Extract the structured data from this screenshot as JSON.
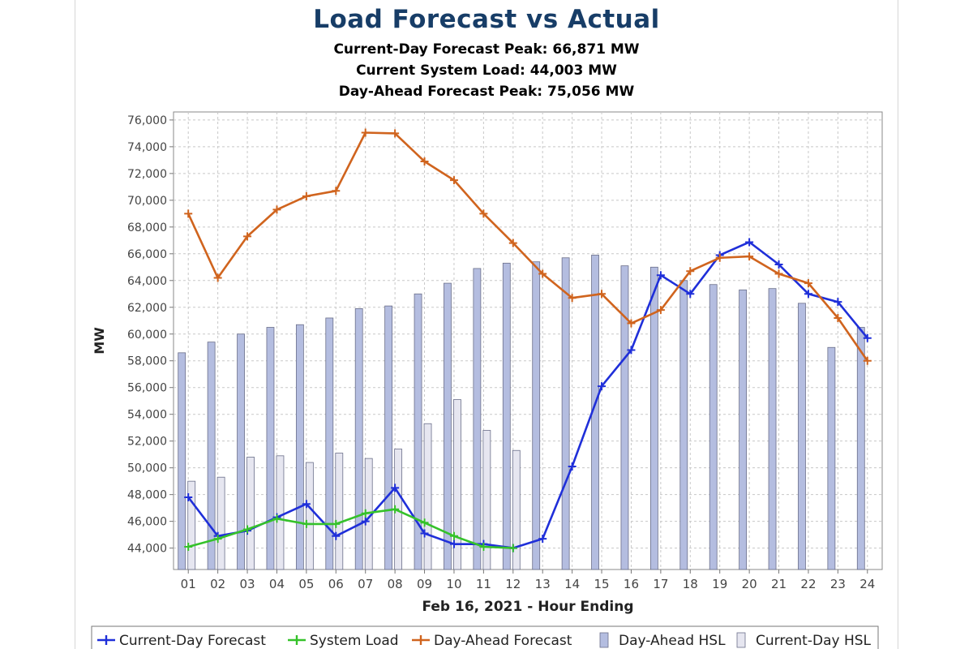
{
  "chart_data": {
    "type": "bar+line",
    "title": "Load Forecast vs Actual",
    "subtitles": [
      {
        "text": "Current-Day Forecast Peak:  66,871 MW",
        "color": "#2230d6"
      },
      {
        "text": "Current System Load:  44,003 MW",
        "color": "#35b52a"
      },
      {
        "text": "Day-Ahead Forecast Peak:  75,056 MW",
        "color": "#d0641e"
      }
    ],
    "xlabel": "Feb 16, 2021 - Hour Ending",
    "ylabel": "MW",
    "ylim": [
      42400,
      76600
    ],
    "yticks": [
      44000,
      46000,
      48000,
      50000,
      52000,
      54000,
      56000,
      58000,
      60000,
      62000,
      64000,
      66000,
      68000,
      70000,
      72000,
      74000,
      76000
    ],
    "ytick_labels": [
      "44,000",
      "46,000",
      "48,000",
      "50,000",
      "52,000",
      "54,000",
      "56,000",
      "58,000",
      "60,000",
      "62,000",
      "64,000",
      "66,000",
      "68,000",
      "70,000",
      "72,000",
      "74,000",
      "76,000"
    ],
    "categories": [
      "01",
      "02",
      "03",
      "04",
      "05",
      "06",
      "07",
      "08",
      "09",
      "10",
      "11",
      "12",
      "13",
      "14",
      "15",
      "16",
      "17",
      "18",
      "19",
      "20",
      "21",
      "22",
      "23",
      "24"
    ],
    "grid": true,
    "legend_placement": "bottom",
    "bars": [
      {
        "name": "Day-Ahead HSL",
        "color": "#b4bde0",
        "values": [
          58600,
          59400,
          60000,
          60500,
          60700,
          61200,
          61900,
          62100,
          63000,
          63800,
          64900,
          65300,
          65400,
          65700,
          65900,
          65100,
          65000,
          64000,
          63700,
          63300,
          63400,
          62300,
          59000,
          60500
        ]
      },
      {
        "name": "Current-Day HSL",
        "color": "#e6e6f0",
        "values": [
          49000,
          49300,
          50800,
          50900,
          50400,
          51100,
          50700,
          51400,
          53300,
          55100,
          52800,
          51300,
          null,
          null,
          null,
          null,
          null,
          null,
          null,
          null,
          null,
          null,
          null,
          null
        ]
      }
    ],
    "series": [
      {
        "name": "Current-Day Forecast",
        "color": "#1f2fd9",
        "values": [
          47800,
          44900,
          45300,
          46300,
          47300,
          44900,
          46000,
          48500,
          45100,
          44300,
          44300,
          44000,
          44700,
          50100,
          56100,
          58800,
          64400,
          63000,
          65900,
          66871,
          65200,
          63000,
          62400,
          59700
        ]
      },
      {
        "name": "System Load",
        "color": "#35c22a",
        "values": [
          44100,
          44700,
          45400,
          46200,
          45800,
          45800,
          46600,
          46900,
          45900,
          44900,
          44100,
          44003,
          null,
          null,
          null,
          null,
          null,
          null,
          null,
          null,
          null,
          null,
          null,
          null
        ]
      },
      {
        "name": "Day-Ahead Forecast",
        "color": "#d0641e",
        "values": [
          69000,
          64200,
          67300,
          69300,
          70300,
          70700,
          75056,
          75000,
          72900,
          71500,
          69000,
          66800,
          64500,
          62700,
          63000,
          60800,
          61800,
          64700,
          65700,
          65800,
          64500,
          63800,
          61200,
          58000
        ]
      }
    ]
  }
}
